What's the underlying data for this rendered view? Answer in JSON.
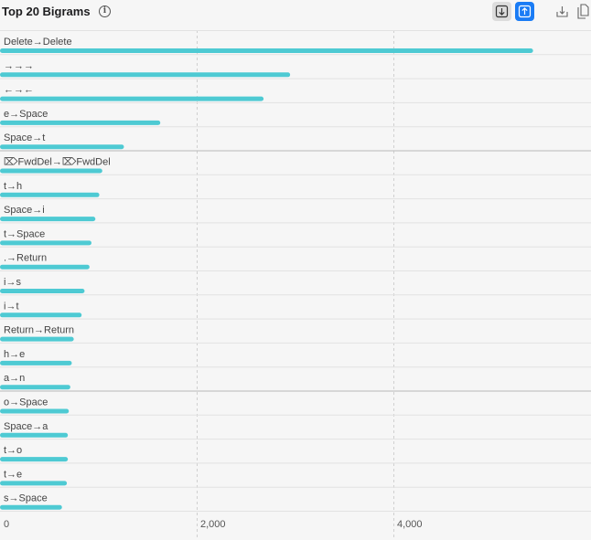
{
  "header": {
    "title": "Top 20 Bigrams",
    "info_icon": "info-circle-icon",
    "buttons": [
      {
        "name": "sort-descending-button",
        "icon": "arrow-down-square-icon"
      },
      {
        "name": "sort-ascending-button",
        "icon": "arrow-up-square-icon",
        "active": true
      },
      {
        "name": "export-button",
        "icon": "tray-download-icon"
      },
      {
        "name": "copy-button",
        "icon": "documents-copy-icon"
      }
    ]
  },
  "colors": {
    "bar": "#4ecad3",
    "accent": "#1a7cf5",
    "grid": "#d0d0d0",
    "separator": "#c8c8c8"
  },
  "chart_data": {
    "type": "bar",
    "orientation": "horizontal",
    "categories": [
      "Delete→Delete",
      "→→→",
      "←→←",
      "e→Space",
      "Space→t",
      "⌦FwdDel→⌦FwdDel",
      "t→h",
      "Space→i",
      "t→Space",
      ".→Return",
      "i→s",
      "i→t",
      "Return→Return",
      "h→e",
      "a→n",
      "o→Space",
      "Space→a",
      "t→o",
      "t→e",
      "s→Space"
    ],
    "values": [
      5420,
      2950,
      2680,
      1630,
      1260,
      1040,
      1010,
      970,
      930,
      910,
      860,
      830,
      750,
      730,
      715,
      700,
      690,
      690,
      680,
      630
    ],
    "xticks": [
      0,
      2000,
      4000
    ],
    "xtick_labels": [
      "0",
      "2,000",
      "4,000"
    ],
    "xlim": [
      0,
      6000
    ],
    "grid": true
  }
}
